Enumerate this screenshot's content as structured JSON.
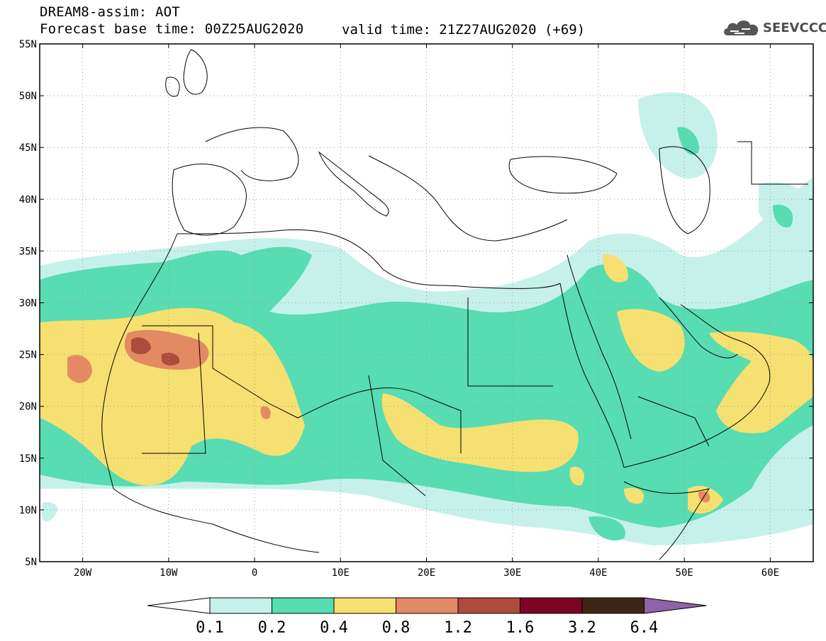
{
  "title": {
    "line1": "DREAM8-assim: AOT",
    "line2a": "Forecast base time: 00Z25AUG2020",
    "line2b": "valid time: 21Z27AUG2020 (+69)"
  },
  "logo": {
    "text": "SEEVCCC",
    "icon": "cloud-icon"
  },
  "map": {
    "lon_range": [
      -25,
      65
    ],
    "lat_range": [
      5,
      55
    ],
    "lat_ticks": [
      {
        "lat": 55,
        "label": "55N"
      },
      {
        "lat": 50,
        "label": "50N"
      },
      {
        "lat": 45,
        "label": "45N"
      },
      {
        "lat": 40,
        "label": "40N"
      },
      {
        "lat": 35,
        "label": "35N"
      },
      {
        "lat": 30,
        "label": "30N"
      },
      {
        "lat": 25,
        "label": "25N"
      },
      {
        "lat": 20,
        "label": "20N"
      },
      {
        "lat": 15,
        "label": "15N"
      },
      {
        "lat": 10,
        "label": "10N"
      },
      {
        "lat": 5,
        "label": "5N"
      }
    ],
    "lon_ticks": [
      {
        "lon": -20,
        "label": "20W"
      },
      {
        "lon": -10,
        "label": "10W"
      },
      {
        "lon": 0,
        "label": "0"
      },
      {
        "lon": 10,
        "label": "10E"
      },
      {
        "lon": 20,
        "label": "20E"
      },
      {
        "lon": 30,
        "label": "30E"
      },
      {
        "lon": 40,
        "label": "40E"
      },
      {
        "lon": 50,
        "label": "50E"
      },
      {
        "lon": 60,
        "label": "60E"
      }
    ],
    "grid": "dotted"
  },
  "colorbar": {
    "levels": [
      "0.1",
      "0.2",
      "0.4",
      "0.8",
      "1.2",
      "1.6",
      "3.2",
      "6.4"
    ],
    "colors": [
      "#ffffff",
      "#c6f1ea",
      "#58dcb2",
      "#f5e071",
      "#e48a62",
      "#ad4b3c",
      "#7e0324",
      "#3d2618",
      "#8f63a6"
    ]
  }
}
